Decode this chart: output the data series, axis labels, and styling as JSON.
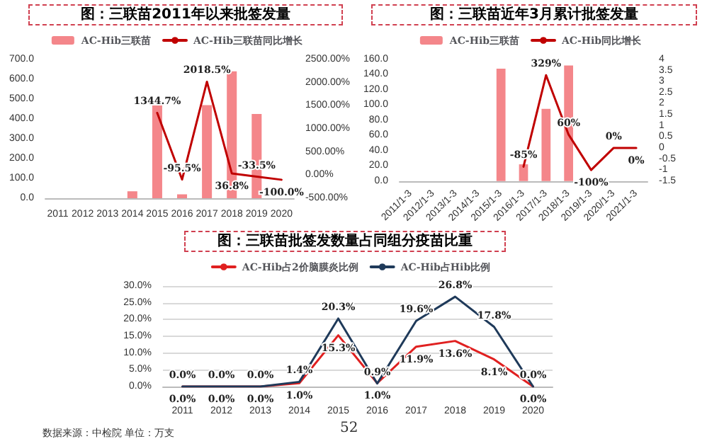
{
  "chart_data": [
    {
      "type": "bar",
      "title": "图：三联苗2011年以来批签发量",
      "categories": [
        "2011",
        "2012",
        "2013",
        "2014",
        "2015",
        "2016",
        "2017",
        "2018",
        "2019",
        "2020"
      ],
      "series": [
        {
          "name": "AC-Hib三联苗",
          "color": "#f4868a",
          "values": [
            0,
            0,
            0,
            35,
            490,
            20,
            470,
            640,
            425,
            0
          ]
        },
        {
          "name": "AC-Hib三联苗同比增长",
          "type": "line",
          "axis": "y2",
          "color": "#c00000",
          "values": [
            null,
            null,
            null,
            null,
            1344.7,
            -95.5,
            2018.5,
            36.8,
            -33.5,
            -100.0
          ],
          "value_labels": [
            null,
            null,
            null,
            null,
            "1344.7%",
            "-95.5%",
            "2018.5%",
            "36.8%",
            "-33.5%",
            "-100.0%"
          ]
        }
      ],
      "ylim": [
        0,
        700
      ],
      "yticks": [
        {
          "value": 0,
          "label": "0.0"
        },
        {
          "value": 100,
          "label": "100.0"
        },
        {
          "value": 200,
          "label": "200.0"
        },
        {
          "value": 300,
          "label": "300.0"
        },
        {
          "value": 400,
          "label": "400.0"
        },
        {
          "value": 500,
          "label": "500.0"
        },
        {
          "value": 600,
          "label": "600.0"
        },
        {
          "value": 700,
          "label": "700.0"
        }
      ],
      "y2lim": [
        -500,
        2500
      ],
      "y2ticks": [
        {
          "value": -500,
          "label": "-500.00%"
        },
        {
          "value": 0,
          "label": "0.00%"
        },
        {
          "value": 500,
          "label": "500.00%"
        },
        {
          "value": 1000,
          "label": "1000.00%"
        },
        {
          "value": 1500,
          "label": "1500.00%"
        },
        {
          "value": 2000,
          "label": "2000.00%"
        },
        {
          "value": 2500,
          "label": "2500.00%"
        }
      ],
      "legend": "top",
      "grid": false
    },
    {
      "type": "bar",
      "title": "图：三联苗近年3月累计批签发量",
      "categories": [
        "2011/1-3",
        "2012/1-3",
        "2013/1-3",
        "2014/1-3",
        "2015/1-3",
        "2016/1-3",
        "2017/1-3",
        "2018/1-3",
        "2019/1-3",
        "2020/1-3",
        "2021/1-3"
      ],
      "series": [
        {
          "name": "AC-Hib三联苗",
          "color": "#f4868a",
          "values": [
            0,
            0,
            0,
            0,
            148,
            22,
            95,
            152,
            0,
            0,
            0
          ]
        },
        {
          "name": "AC-Hib同比增长",
          "type": "line",
          "axis": "y2",
          "color": "#c00000",
          "values": [
            null,
            null,
            null,
            null,
            null,
            -0.85,
            3.29,
            0.6,
            -1,
            0,
            0
          ],
          "value_labels": [
            null,
            null,
            null,
            null,
            null,
            "-85%",
            "329%",
            "60%",
            "-100%",
            "0%",
            "0%"
          ]
        }
      ],
      "ylim": [
        0,
        160
      ],
      "yticks": [
        {
          "value": 0,
          "label": "0.0"
        },
        {
          "value": 20,
          "label": "20.0"
        },
        {
          "value": 40,
          "label": "40.0"
        },
        {
          "value": 60,
          "label": "60.0"
        },
        {
          "value": 80,
          "label": "80.0"
        },
        {
          "value": 100,
          "label": "100.0"
        },
        {
          "value": 120,
          "label": "120.0"
        },
        {
          "value": 140,
          "label": "140.0"
        },
        {
          "value": 160,
          "label": "160.0"
        }
      ],
      "y2lim": [
        -1.5,
        4
      ],
      "y2ticks": [
        -1.5,
        -1,
        -0.5,
        0,
        0.5,
        1,
        1.5,
        2,
        2.5,
        3,
        3.5,
        4
      ],
      "legend": "top",
      "grid": false
    },
    {
      "type": "line",
      "title": "图：三联苗批签发数量占同组分疫苗比重",
      "categories": [
        "2011",
        "2012",
        "2013",
        "2014",
        "2015",
        "2016",
        "2017",
        "2018",
        "2019",
        "2020"
      ],
      "series": [
        {
          "name": "AC-Hib占2价脑膜炎比例",
          "color": "#e02020",
          "values": [
            0,
            0,
            0,
            1.0,
            15.3,
            1.0,
            11.9,
            13.6,
            8.1,
            0
          ],
          "value_labels": [
            "0.0%",
            "0.0%",
            "0.0%",
            "1.0%",
            "15.3%",
            "1.0%",
            "11.9%",
            "13.6%",
            "8.1%",
            "0.0%"
          ]
        },
        {
          "name": "AC-Hib占Hib比例",
          "color": "#1f3a5a",
          "values": [
            0,
            0,
            0,
            1.4,
            20.3,
            0.9,
            19.6,
            26.8,
            17.8,
            0
          ],
          "value_labels": [
            "0.0%",
            "0.0%",
            "0.0%",
            "1.4%",
            "20.3%",
            "0.9%",
            "19.6%",
            "26.8%",
            "17.8%",
            "0.0%"
          ]
        }
      ],
      "ylim": [
        0,
        30
      ],
      "yticks": [
        {
          "value": 0,
          "label": "0.0%"
        },
        {
          "value": 5,
          "label": "5.0%"
        },
        {
          "value": 10,
          "label": "10.0%"
        },
        {
          "value": 15,
          "label": "15.0%"
        },
        {
          "value": 20,
          "label": "20.0%"
        },
        {
          "value": 25,
          "label": "25.0%"
        },
        {
          "value": 30,
          "label": "30.0%"
        }
      ],
      "legend": "top",
      "grid": "y",
      "annotations": [
        "数据来源：中检院 单位：万支",
        "52"
      ]
    }
  ]
}
